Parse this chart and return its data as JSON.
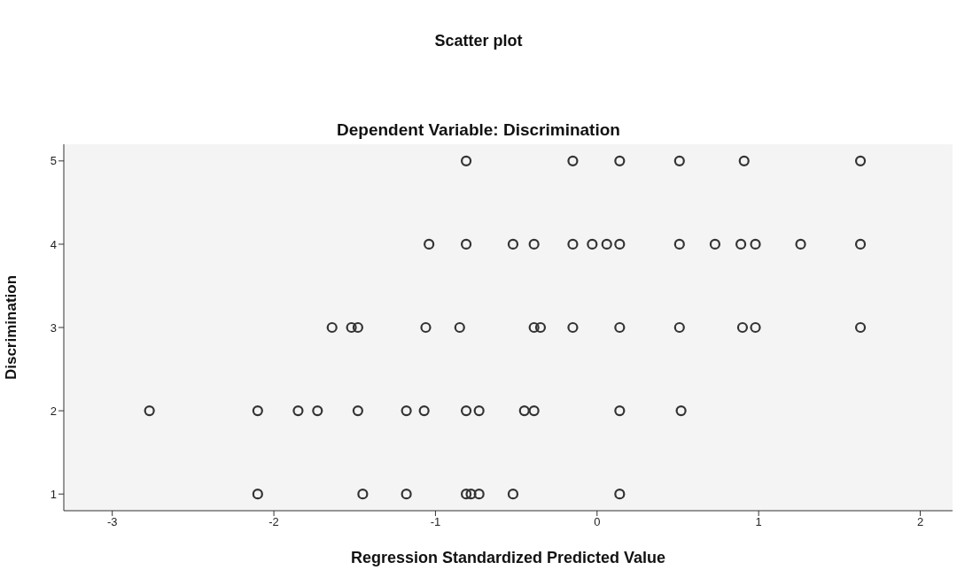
{
  "chart_data": {
    "type": "scatter",
    "title": "Scatter plot",
    "subtitle": "Dependent Variable: Discrimination",
    "xlabel": "Regression Standardized Predicted Value",
    "ylabel": "Discrimination",
    "xlim": [
      -3.3,
      2.2
    ],
    "xticks": [
      -3,
      -2,
      -1,
      0,
      1,
      2
    ],
    "ylim": [
      0.8,
      5.2
    ],
    "yticks": [
      1,
      2,
      3,
      4,
      5
    ],
    "grid": false,
    "legend": false,
    "marker": "circle",
    "series": [
      {
        "color": "#333333",
        "x": [
          -0.81,
          -0.15,
          0.14,
          0.51,
          0.91,
          1.63,
          -1.04,
          -0.81,
          -0.52,
          -0.39,
          -0.15,
          -0.03,
          0.06,
          0.14,
          0.51,
          0.73,
          0.89,
          0.98,
          1.26,
          1.63,
          -1.64,
          -1.52,
          -1.48,
          -1.06,
          -0.85,
          -0.39,
          -0.35,
          -0.15,
          0.14,
          0.51,
          0.9,
          0.98,
          1.63,
          -2.77,
          -2.1,
          -1.85,
          -1.73,
          -1.48,
          -1.18,
          -1.07,
          -0.81,
          -0.73,
          -0.45,
          -0.39,
          0.14,
          0.52,
          -2.1,
          -1.45,
          -1.18,
          -0.81,
          -0.78,
          -0.73,
          -0.52,
          0.14
        ],
        "values": [
          5,
          5,
          5,
          5,
          5,
          5,
          4,
          4,
          4,
          4,
          4,
          4,
          4,
          4,
          4,
          4,
          4,
          4,
          4,
          4,
          3,
          3,
          3,
          3,
          3,
          3,
          3,
          3,
          3,
          3,
          3,
          3,
          3,
          2,
          2,
          2,
          2,
          2,
          2,
          2,
          2,
          2,
          2,
          2,
          2,
          2,
          1,
          1,
          1,
          1,
          1,
          1,
          1,
          1
        ]
      }
    ]
  }
}
